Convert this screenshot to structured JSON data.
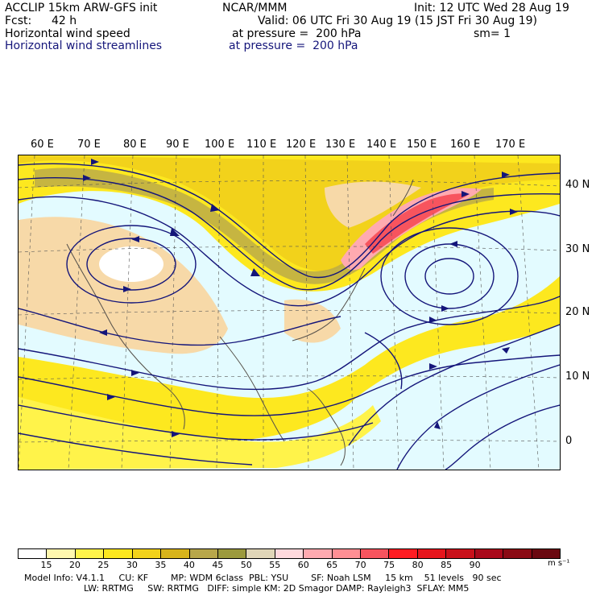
{
  "header": {
    "model": "ACCLIP 15km ARW-GFS init",
    "center": "NCAR/MMM",
    "init": "Init: 12 UTC Wed 28 Aug 19",
    "fcst_label": "Fcst:",
    "fcst_value": "42 h",
    "valid": "Valid: 06 UTC Fri 30 Aug 19 (15 JST Fri 30 Aug 19)",
    "field1_name": "Horizontal wind speed",
    "field1_level": "at pressure =  200 hPa",
    "field1_smooth": "sm= 1",
    "field2_name": "Horizontal wind streamlines",
    "field2_level": "at pressure =  200 hPa"
  },
  "map": {
    "lon_labels": [
      "60 E",
      "70 E",
      "80 E",
      "90 E",
      "100 E",
      "110 E",
      "120 E",
      "130 E",
      "140 E",
      "150 E",
      "160 E",
      "170 E"
    ],
    "lat_labels": [
      "40 N",
      "30 N",
      "20 N",
      "10 N",
      "0"
    ],
    "streamline_color": "#14157a"
  },
  "colorbar": {
    "colors": [
      "#ffffff",
      "#fff7ae",
      "#fff34a",
      "#fde81f",
      "#f2d21b",
      "#d8b41b",
      "#b8a74a",
      "#9c9a3d",
      "#e0d6b8",
      "#ffd9dd",
      "#ffaab0",
      "#ff8f94",
      "#f7545e",
      "#ff1c22",
      "#e6151c",
      "#c9101a",
      "#a9081a",
      "#8a0a14",
      "#6a0810"
    ],
    "labels": [
      "15",
      "20",
      "25",
      "30",
      "35",
      "40",
      "45",
      "50",
      "55",
      "60",
      "65",
      "70",
      "75",
      "80",
      "85",
      "90"
    ],
    "unit": "m s⁻¹"
  },
  "model_info": {
    "line1": "Model Info: V4.1.1     CU: KF        MP: WDM 6class  PBL: YSU        SF: Noah LSM     15 km    51 levels   90 sec",
    "line2": "LW: RRTMG     SW: RRTMG   DIFF: simple KM: 2D Smagor DAMP: Rayleigh3  SFLAY: MM5"
  }
}
